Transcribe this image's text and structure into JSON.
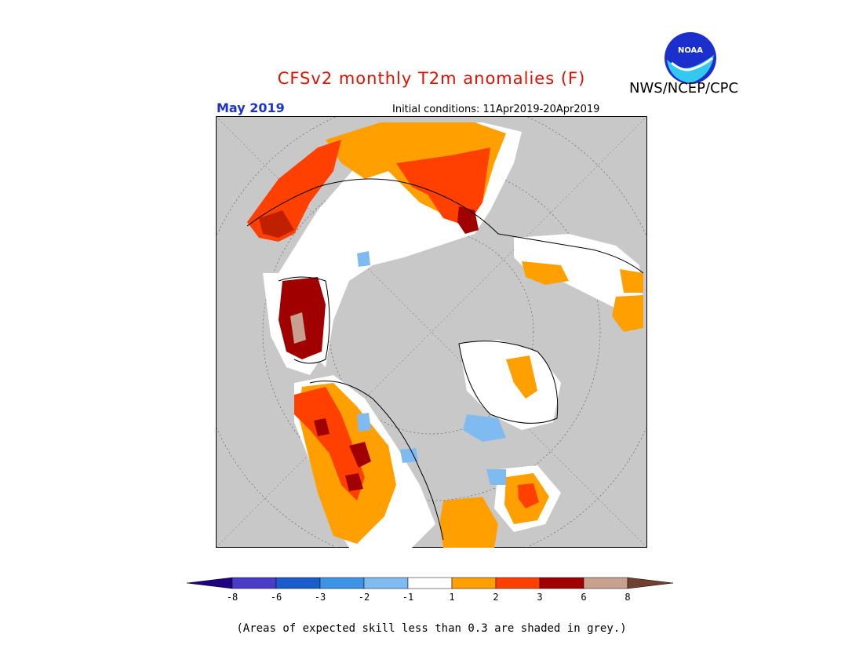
{
  "title": "CFSv2 monthly T2m anomalies (F)",
  "agency": "NWS/NCEP/CPC",
  "month": "May 2019",
  "initial_conditions": "Initial conditions: 11Apr2019-20Apr2019",
  "note": "(Areas of expected skill less than 0.3 are shaded in grey.)",
  "colors": {
    "title": "#dd1100",
    "month": "#1a33cc",
    "skill_grey": "#c8c8c8",
    "land_outline": "#000000"
  },
  "legend": {
    "labels": [
      "-8",
      "-6",
      "-3",
      "-2",
      "-1",
      "1",
      "2",
      "3",
      "6",
      "8"
    ],
    "colors": [
      "#1f0080",
      "#4b3cc8",
      "#1a5ccc",
      "#3d94e6",
      "#7fbbf0",
      "#ffffff",
      "#ffa000",
      "#ff4000",
      "#a00000",
      "#c8a090",
      "#704030"
    ]
  },
  "map": {
    "projection": "north-polar-stereographic",
    "legend_meaning": "temperature anomaly (F)"
  }
}
